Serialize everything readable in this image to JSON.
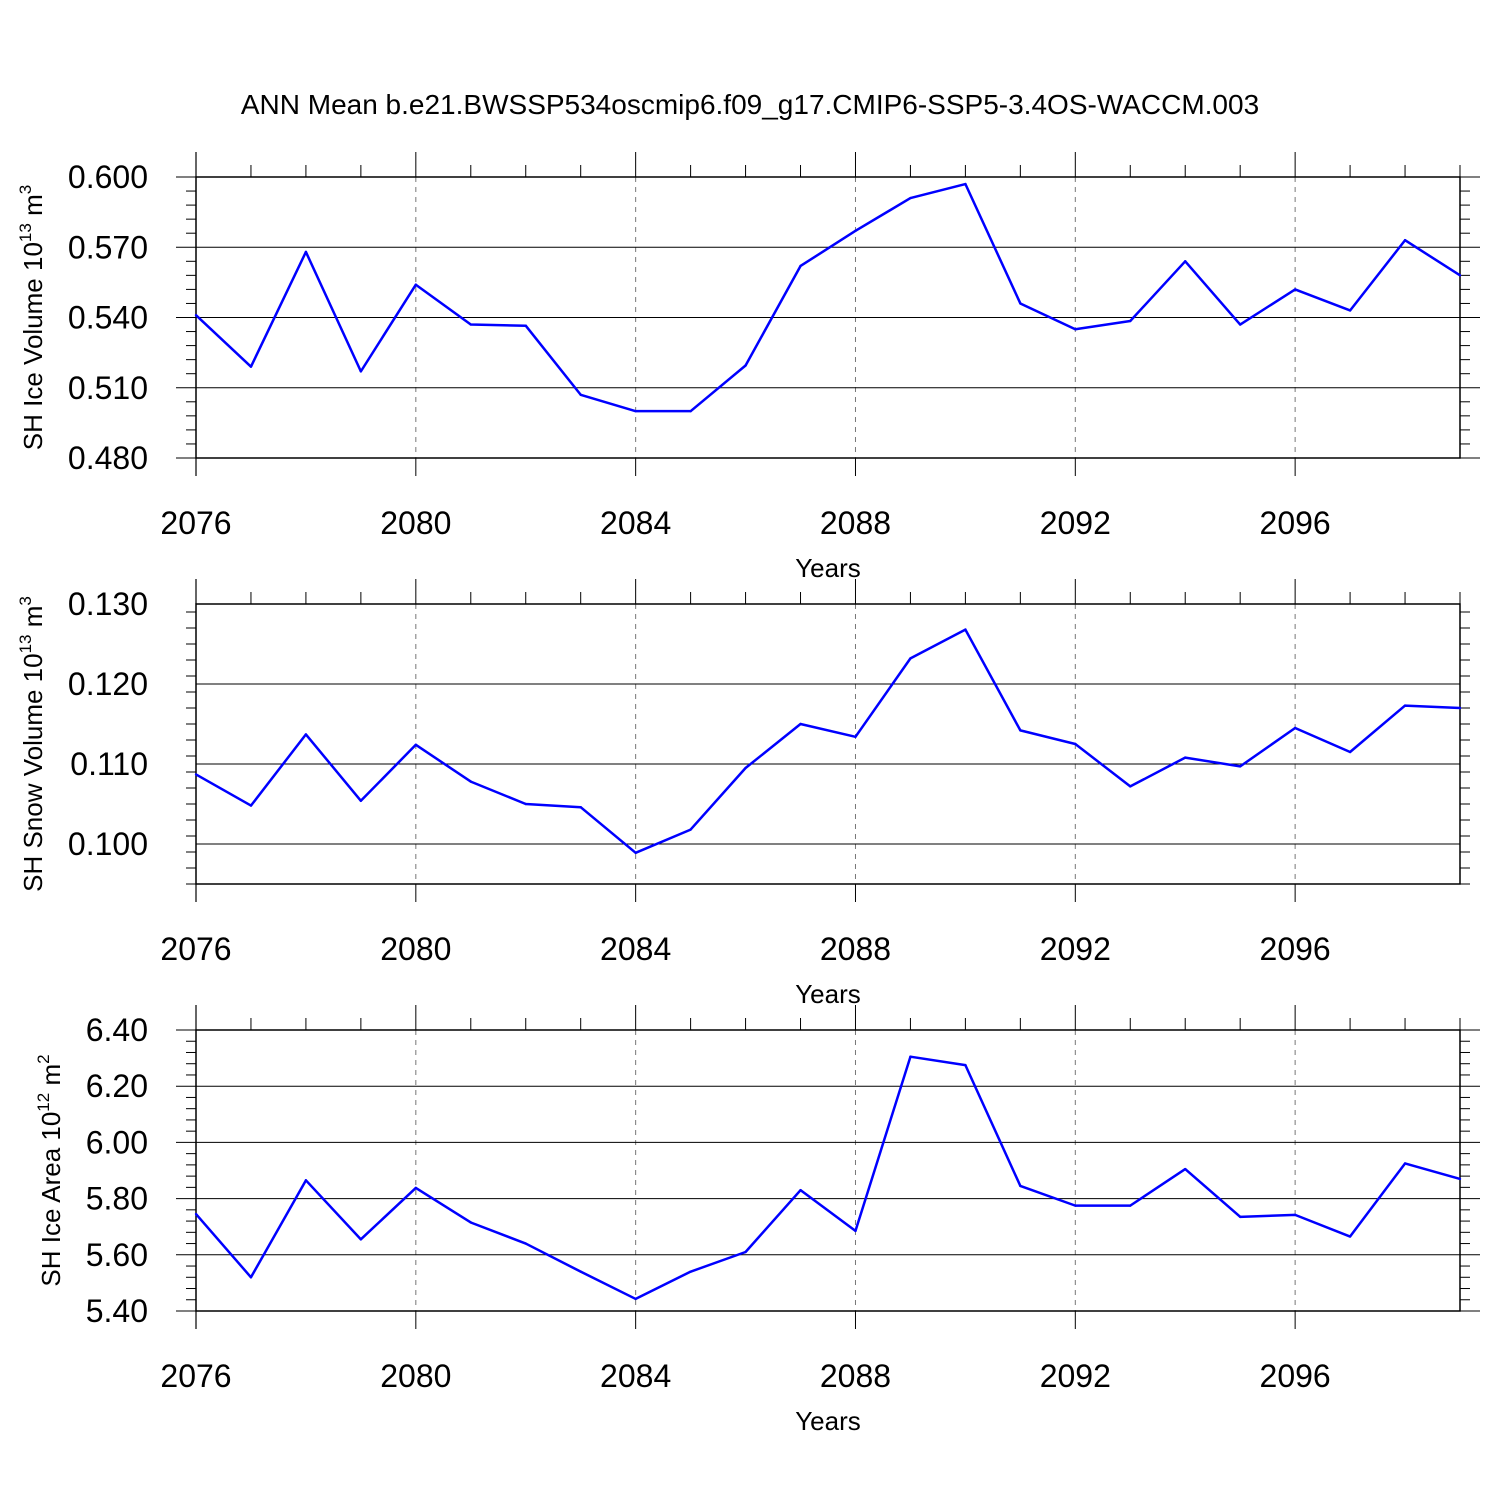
{
  "title": "ANN Mean b.e21.BWSSP534oscmip6.f09_g17.CMIP6-SSP5-3.4OS-WACCM.003",
  "chart_data": [
    {
      "type": "line",
      "ylabel": "SH Ice Volume 10",
      "ylabel_exp": "13",
      "ylabel_unit": " m",
      "ylabel_unit_exp": "3",
      "xlabel": "Years",
      "xlim": [
        2076,
        2099
      ],
      "ylim": [
        0.48,
        0.6
      ],
      "yticks": [
        0.48,
        0.51,
        0.54,
        0.57,
        0.6
      ],
      "ytick_labels": [
        "0.480",
        "0.510",
        "0.540",
        "0.570",
        "0.600"
      ],
      "xticks": [
        2076,
        2080,
        2084,
        2088,
        2092,
        2096
      ],
      "xtick_labels": [
        "2076",
        "2080",
        "2084",
        "2088",
        "2092",
        "2096"
      ],
      "line_color": "#0000ff",
      "x": [
        2076,
        2077,
        2078,
        2079,
        2080,
        2081,
        2082,
        2083,
        2084,
        2085,
        2086,
        2087,
        2088,
        2089,
        2090,
        2091,
        2092,
        2093,
        2094,
        2095,
        2096,
        2097,
        2098,
        2099
      ],
      "values": [
        0.541,
        0.519,
        0.568,
        0.517,
        0.554,
        0.537,
        0.5365,
        0.507,
        0.5,
        0.5,
        0.5195,
        0.562,
        0.577,
        0.591,
        0.597,
        0.546,
        0.535,
        0.5385,
        0.564,
        0.537,
        0.552,
        0.543,
        0.573,
        0.558
      ]
    },
    {
      "type": "line",
      "ylabel": "SH Snow Volume 10",
      "ylabel_exp": "13",
      "ylabel_unit": " m",
      "ylabel_unit_exp": "3",
      "xlabel": "Years",
      "xlim": [
        2076,
        2099
      ],
      "ylim": [
        0.095,
        0.13
      ],
      "yticks": [
        0.1,
        0.11,
        0.12,
        0.13
      ],
      "ytick_labels": [
        "0.100",
        "0.110",
        "0.120",
        "0.130"
      ],
      "xticks": [
        2076,
        2080,
        2084,
        2088,
        2092,
        2096
      ],
      "xtick_labels": [
        "2076",
        "2080",
        "2084",
        "2088",
        "2092",
        "2096"
      ],
      "line_color": "#0000ff",
      "x": [
        2076,
        2077,
        2078,
        2079,
        2080,
        2081,
        2082,
        2083,
        2084,
        2085,
        2086,
        2087,
        2088,
        2089,
        2090,
        2091,
        2092,
        2093,
        2094,
        2095,
        2096,
        2097,
        2098,
        2099
      ],
      "values": [
        0.1087,
        0.1048,
        0.1137,
        0.1054,
        0.1124,
        0.1078,
        0.105,
        0.1046,
        0.0989,
        0.1018,
        0.1095,
        0.115,
        0.1134,
        0.1232,
        0.1268,
        0.1142,
        0.1125,
        0.1072,
        0.1108,
        0.1097,
        0.1145,
        0.1115,
        0.1173,
        0.117
      ]
    },
    {
      "type": "line",
      "ylabel": "SH Ice Area 10",
      "ylabel_exp": "12",
      "ylabel_unit": " m",
      "ylabel_unit_exp": "2",
      "xlabel": "Years",
      "xlim": [
        2076,
        2099
      ],
      "ylim": [
        5.4,
        6.4
      ],
      "yticks": [
        5.4,
        5.6,
        5.8,
        6.0,
        6.2,
        6.4
      ],
      "ytick_labels": [
        "5.40",
        "5.60",
        "5.80",
        "6.00",
        "6.20",
        "6.40"
      ],
      "xticks": [
        2076,
        2080,
        2084,
        2088,
        2092,
        2096
      ],
      "xtick_labels": [
        "2076",
        "2080",
        "2084",
        "2088",
        "2092",
        "2096"
      ],
      "line_color": "#0000ff",
      "x": [
        2076,
        2077,
        2078,
        2079,
        2080,
        2081,
        2082,
        2083,
        2084,
        2085,
        2086,
        2087,
        2088,
        2089,
        2090,
        2091,
        2092,
        2093,
        2094,
        2095,
        2096,
        2097,
        2098,
        2099
      ],
      "values": [
        5.745,
        5.52,
        5.865,
        5.655,
        5.838,
        5.715,
        5.64,
        5.54,
        5.443,
        5.54,
        5.61,
        5.83,
        5.685,
        6.305,
        6.275,
        5.845,
        5.775,
        5.775,
        5.905,
        5.735,
        5.742,
        5.665,
        5.925,
        5.87
      ]
    }
  ]
}
